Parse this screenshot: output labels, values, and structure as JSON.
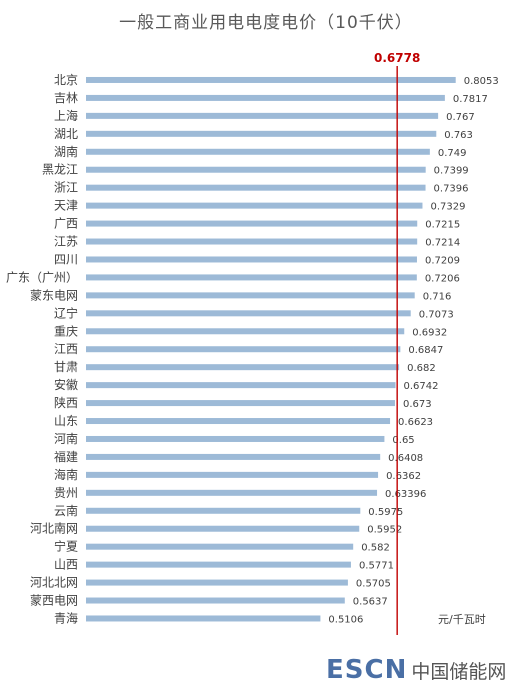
{
  "chart_data": {
    "type": "bar",
    "orientation": "horizontal",
    "title": "一般工商业用电电度电价（10千伏）",
    "unit": "元/千瓦时",
    "reference_line": {
      "value": 0.6778,
      "label": "0.6778",
      "color": "#c00000"
    },
    "bar_color": "#9dbad7",
    "xlim": [
      0,
      0.88
    ],
    "grid": false,
    "categories": [
      "北京",
      "吉林",
      "上海",
      "湖北",
      "湖南",
      "黑龙江",
      "浙江",
      "天津",
      "广西",
      "江苏",
      "四川",
      "广东（广州）",
      "蒙东电网",
      "辽宁",
      "重庆",
      "江西",
      "甘肃",
      "安徽",
      "陕西",
      "山东",
      "河南",
      "福建",
      "海南",
      "贵州",
      "云南",
      "河北南网",
      "宁夏",
      "山西",
      "河北北网",
      "蒙西电网",
      "青海"
    ],
    "values": [
      0.8053,
      0.7817,
      0.767,
      0.763,
      0.749,
      0.7399,
      0.7396,
      0.7329,
      0.7215,
      0.7214,
      0.7209,
      0.7206,
      0.716,
      0.7073,
      0.6932,
      0.6847,
      0.682,
      0.6742,
      0.673,
      0.6623,
      0.65,
      0.6408,
      0.6362,
      0.63396,
      0.5975,
      0.5952,
      0.582,
      0.5771,
      0.5705,
      0.5637,
      0.5106
    ],
    "value_labels": [
      "0.8053",
      "0.7817",
      "0.767",
      "0.763",
      "0.749",
      "0.7399",
      "0.7396",
      "0.7329",
      "0.7215",
      "0.7214",
      "0.7209",
      "0.7206",
      "0.716",
      "0.7073",
      "0.6932",
      "0.6847",
      "0.682",
      "0.6742",
      "0.673",
      "0.6623",
      "0.65",
      "0.6408",
      "0.6362",
      "0.63396",
      "0.5975",
      "0.5952",
      "0.582",
      "0.5771",
      "0.5705",
      "0.5637",
      "0.5106"
    ]
  },
  "watermark": {
    "brand": "ESCN",
    "cn": "中国储能网"
  }
}
